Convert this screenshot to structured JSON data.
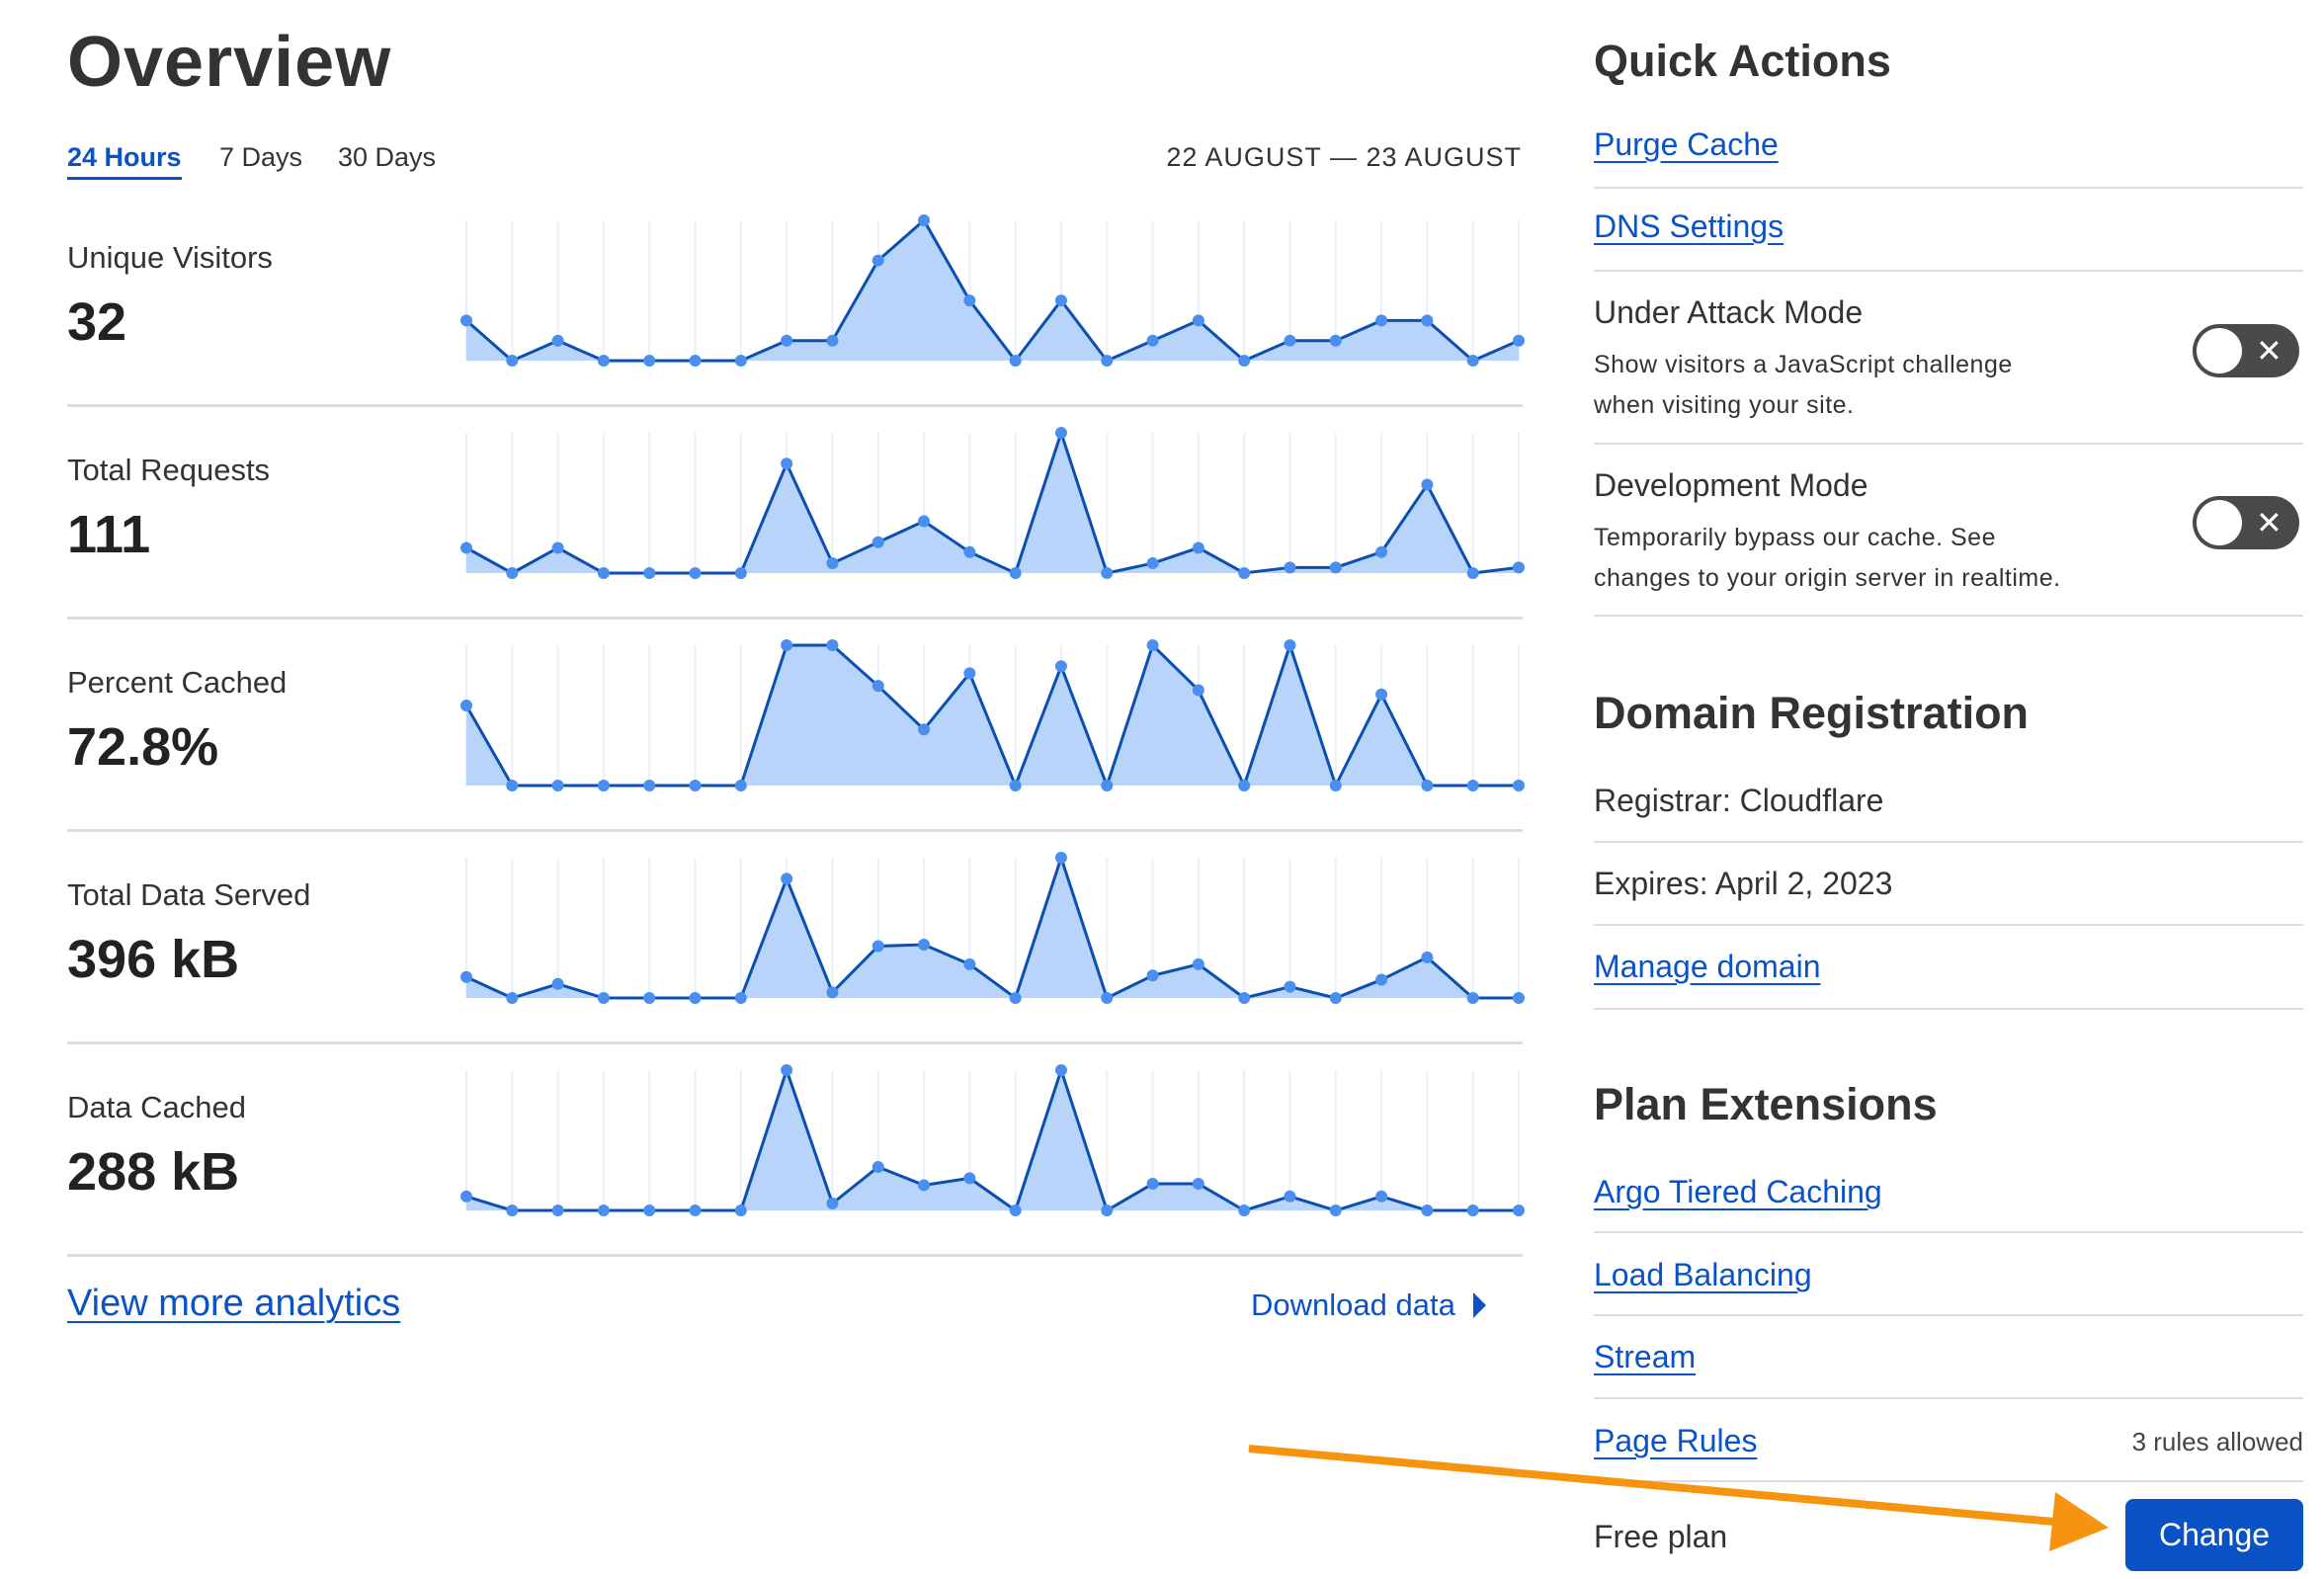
{
  "overview": {
    "title": "Overview",
    "tabs": [
      {
        "label": "24 Hours",
        "active": true
      },
      {
        "label": "7 Days"
      },
      {
        "label": "30 Days"
      }
    ],
    "date_range": "22 AUGUST — 23 AUGUST",
    "metrics": [
      {
        "label": "Unique Visitors",
        "value": "32"
      },
      {
        "label": "Total Requests",
        "value": "111"
      },
      {
        "label": "Percent Cached",
        "value": "72.8%"
      },
      {
        "label": "Total Data Served",
        "value": "396 kB"
      },
      {
        "label": "Data Cached",
        "value": "288 kB"
      }
    ],
    "view_more": "View more analytics",
    "download": "Download data"
  },
  "chart_data": [
    {
      "type": "area",
      "values": [
        2,
        0,
        1,
        0,
        0,
        0,
        0,
        1,
        1,
        5,
        7,
        3,
        0,
        3,
        0,
        1,
        2,
        0,
        1,
        1,
        2,
        2,
        0,
        1
      ]
    },
    {
      "type": "area",
      "values": [
        18,
        0,
        18,
        0,
        0,
        0,
        0,
        78,
        7,
        22,
        37,
        15,
        0,
        100,
        0,
        7,
        18,
        0,
        4,
        4,
        15,
        63,
        0,
        4
      ]
    },
    {
      "type": "area",
      "values": [
        57,
        0,
        0,
        0,
        0,
        0,
        0,
        100,
        100,
        71,
        40,
        80,
        0,
        85,
        0,
        100,
        68,
        0,
        100,
        0,
        65,
        0,
        0,
        0
      ]
    },
    {
      "type": "area",
      "values": [
        15,
        0,
        10,
        0,
        0,
        0,
        0,
        85,
        4,
        37,
        38,
        24,
        0,
        100,
        0,
        16,
        24,
        0,
        8,
        0,
        13,
        29,
        0,
        0
      ]
    },
    {
      "type": "area",
      "values": [
        10,
        0,
        0,
        0,
        0,
        0,
        0,
        100,
        5,
        31,
        18,
        23,
        0,
        100,
        0,
        19,
        19,
        0,
        10,
        0,
        10,
        0,
        0,
        0
      ]
    }
  ],
  "colors": {
    "accent": "#0b52c7",
    "fill": "#b8d4fb",
    "line": "#0b4fb0",
    "dot": "#4a8ff0",
    "arrow": "#f7940f"
  },
  "quick_actions": {
    "title": "Quick Actions",
    "purge": "Purge Cache",
    "dns": "DNS Settings",
    "under_attack": {
      "title": "Under Attack Mode",
      "desc1": "Show visitors a JavaScript challenge",
      "desc2": "when visiting your site.",
      "on": false
    },
    "dev_mode": {
      "title": "Development Mode",
      "desc1": "Temporarily bypass our cache. See",
      "desc2": "changes to your origin server in realtime.",
      "on": false
    }
  },
  "domain": {
    "title": "Domain Registration",
    "registrar": "Registrar: Cloudflare",
    "expires": "Expires: April 2, 2023",
    "manage": "Manage domain"
  },
  "plan": {
    "title": "Plan Extensions",
    "argo": "Argo Tiered Caching",
    "lb": "Load Balancing",
    "stream": "Stream",
    "page_rules": "Page Rules",
    "rules_allowed": "3 rules allowed",
    "plan_name": "Free plan",
    "change": "Change"
  }
}
